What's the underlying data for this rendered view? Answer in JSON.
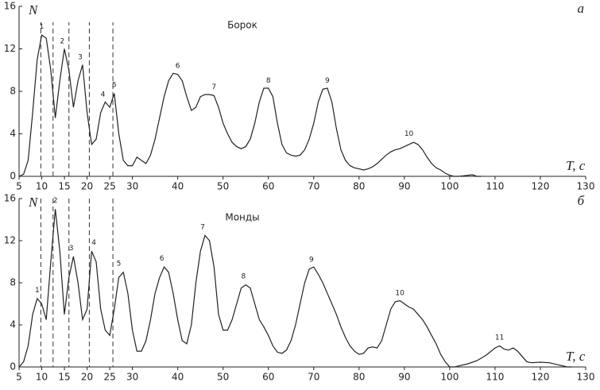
{
  "chart_data": [
    {
      "type": "line",
      "title": "Борок",
      "panel_label": "а",
      "xlabel": "T, с",
      "ylabel": "N",
      "xlim": [
        5,
        130
      ],
      "ylim": [
        0,
        16
      ],
      "xticks": [
        5,
        10,
        15,
        20,
        25,
        30,
        40,
        50,
        60,
        70,
        80,
        90,
        100,
        110,
        120,
        130
      ],
      "yticks": [
        0,
        4,
        8,
        12,
        16
      ],
      "vlines": [
        9.8,
        12.5,
        16,
        20.5,
        25.7
      ],
      "series": [
        {
          "color": "#222222",
          "x": [
            5,
            6,
            7,
            8,
            9,
            10,
            11,
            12,
            13,
            14,
            15,
            16,
            17,
            18,
            19,
            20,
            21,
            22,
            23,
            24,
            25,
            26,
            27,
            28,
            29,
            30,
            31,
            32,
            33,
            34,
            35,
            36,
            37,
            38,
            39,
            40,
            41,
            42,
            43,
            44,
            45,
            46,
            47,
            48,
            49,
            50,
            51,
            52,
            53,
            54,
            55,
            56,
            57,
            58,
            59,
            60,
            61,
            62,
            63,
            64,
            65,
            66,
            67,
            68,
            69,
            70,
            71,
            72,
            73,
            74,
            75,
            76,
            77,
            78,
            79,
            80,
            81,
            82,
            83,
            84,
            85,
            86,
            87,
            88,
            89,
            90,
            91,
            92,
            93,
            94,
            95,
            96,
            97,
            98,
            99,
            100,
            101,
            102,
            104,
            105,
            106,
            107
          ],
          "values": [
            0,
            0.2,
            1.5,
            6,
            11,
            13.3,
            13,
            10,
            5.5,
            9,
            12,
            10,
            6.5,
            9,
            10.5,
            6,
            3,
            3.5,
            6,
            7,
            6.5,
            7.8,
            4,
            1.5,
            1,
            1,
            1.8,
            1.5,
            1.2,
            2,
            3.5,
            5.5,
            7.5,
            9,
            9.7,
            9.6,
            9,
            7.5,
            6.2,
            6.5,
            7.5,
            7.7,
            7.7,
            7.6,
            6.5,
            5,
            4,
            3.2,
            2.8,
            2.6,
            2.8,
            3.5,
            5,
            7,
            8.3,
            8.3,
            7.5,
            5,
            3,
            2.2,
            2,
            1.9,
            2,
            2.5,
            3.5,
            5,
            7,
            8.2,
            8.3,
            7,
            4.5,
            2.5,
            1.5,
            1,
            0.8,
            0.7,
            0.6,
            0.7,
            0.9,
            1.2,
            1.6,
            2,
            2.3,
            2.5,
            2.6,
            2.8,
            3,
            3.2,
            3,
            2.5,
            1.8,
            1.2,
            0.8,
            0.6,
            0.3,
            0.1,
            0,
            0,
            0.1,
            0.15,
            0,
            0
          ]
        }
      ],
      "annotations": [
        {
          "text": "1",
          "x": 10,
          "y": 13.8
        },
        {
          "text": "2",
          "x": 14.5,
          "y": 12.4
        },
        {
          "text": "3",
          "x": 18.5,
          "y": 10.9
        },
        {
          "text": "4",
          "x": 23.5,
          "y": 7.4
        },
        {
          "text": "5",
          "x": 26,
          "y": 8.3
        },
        {
          "text": "6",
          "x": 40,
          "y": 10.1
        },
        {
          "text": "7",
          "x": 48,
          "y": 8.1
        },
        {
          "text": "8",
          "x": 60,
          "y": 8.7
        },
        {
          "text": "9",
          "x": 73,
          "y": 8.7
        },
        {
          "text": "10",
          "x": 91,
          "y": 3.7
        }
      ]
    },
    {
      "type": "line",
      "title": "Монды",
      "panel_label": "б",
      "xlabel": "T, с",
      "ylabel": "N",
      "xlim": [
        5,
        130
      ],
      "ylim": [
        0,
        16
      ],
      "xticks": [
        5,
        10,
        15,
        20,
        25,
        30,
        40,
        50,
        60,
        70,
        80,
        90,
        100,
        110,
        120,
        130
      ],
      "yticks": [
        0,
        4,
        8,
        12,
        16
      ],
      "vlines": [
        9.8,
        12.5,
        16,
        20.5,
        25.7
      ],
      "series": [
        {
          "color": "#222222",
          "x": [
            5,
            6,
            7,
            8,
            9,
            10,
            11,
            12,
            13,
            14,
            15,
            16,
            17,
            18,
            19,
            20,
            21,
            22,
            23,
            24,
            25,
            26,
            27,
            28,
            29,
            30,
            31,
            32,
            33,
            34,
            35,
            36,
            37,
            38,
            39,
            40,
            41,
            42,
            43,
            44,
            45,
            46,
            47,
            48,
            49,
            50,
            51,
            52,
            53,
            54,
            55,
            56,
            57,
            58,
            59,
            60,
            61,
            62,
            63,
            64,
            65,
            66,
            67,
            68,
            69,
            70,
            71,
            72,
            73,
            74,
            75,
            76,
            77,
            78,
            79,
            80,
            81,
            82,
            83,
            84,
            85,
            86,
            87,
            88,
            89,
            90,
            91,
            92,
            93,
            94,
            95,
            96,
            97,
            98,
            99,
            100,
            101,
            102,
            104,
            106,
            108,
            110,
            111,
            112,
            113,
            114,
            115,
            116,
            117,
            118,
            120,
            122,
            124,
            126,
            127
          ],
          "values": [
            0,
            0.5,
            2,
            5,
            6.5,
            6,
            4.5,
            10,
            15,
            11,
            5,
            8.5,
            10.5,
            8,
            4.5,
            5.5,
            11,
            10,
            5.5,
            3.5,
            3,
            5.5,
            8.5,
            9,
            7,
            3.5,
            1.5,
            1.5,
            2.5,
            4.5,
            7,
            8.5,
            9.5,
            9,
            7,
            4.5,
            2.5,
            2.2,
            4,
            8,
            11,
            12.5,
            12,
            9.5,
            5,
            3.5,
            3.5,
            4.5,
            6,
            7.5,
            7.8,
            7.5,
            6,
            4.5,
            3.8,
            3,
            2,
            1.4,
            1.3,
            1.6,
            2.5,
            4,
            6,
            8,
            9.3,
            9.5,
            8.8,
            8,
            7,
            6,
            5,
            3.8,
            2.8,
            2,
            1.5,
            1.2,
            1.3,
            1.8,
            1.9,
            1.8,
            2.5,
            4,
            5.5,
            6.2,
            6.3,
            6,
            5.7,
            5.5,
            5,
            4.5,
            3.8,
            3,
            2.2,
            1.2,
            0.5,
            0,
            0,
            0.1,
            0.3,
            0.6,
            1.1,
            1.8,
            2,
            1.7,
            1.6,
            1.8,
            1.5,
            1,
            0.5,
            0.4,
            0.45,
            0.4,
            0.2,
            0,
            0
          ]
        }
      ],
      "annotations": [
        {
          "text": "1",
          "x": 9,
          "y": 7
        },
        {
          "text": "2",
          "x": 13,
          "y": 15.5
        },
        {
          "text": "3",
          "x": 16.5,
          "y": 11
        },
        {
          "text": "4",
          "x": 21.5,
          "y": 11.5
        },
        {
          "text": "5",
          "x": 27,
          "y": 9.5
        },
        {
          "text": "6",
          "x": 36.5,
          "y": 10
        },
        {
          "text": "7",
          "x": 45.5,
          "y": 13
        },
        {
          "text": "8",
          "x": 54.5,
          "y": 8.3
        },
        {
          "text": "9",
          "x": 69.5,
          "y": 9.9
        },
        {
          "text": "10",
          "x": 89,
          "y": 6.7
        },
        {
          "text": "11",
          "x": 111,
          "y": 2.5
        }
      ]
    }
  ]
}
